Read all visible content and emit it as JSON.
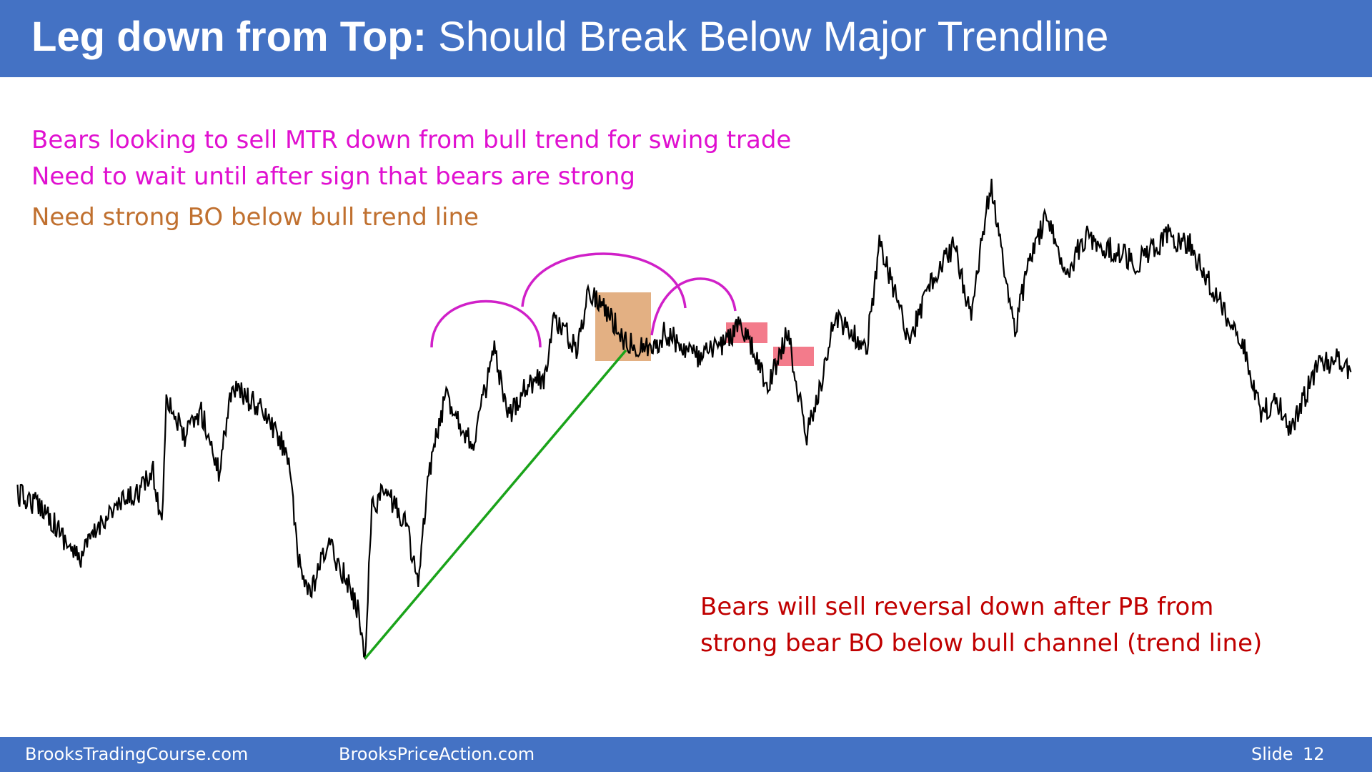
{
  "header": {
    "title_bold": "Leg down from Top:",
    "title_rest": "Should Break Below Major Trendline"
  },
  "notes": [
    "Bears looking to sell MTR down from bull trend for swing trade",
    "Need to wait until after sign that bears are strong",
    "Need strong BO below bull trend line"
  ],
  "bottom_note": [
    "Bears will sell reversal down after PB from",
    "strong bear BO below bull channel (trend line)"
  ],
  "footer": {
    "site1": "BrooksTradingCourse.com",
    "site2": "BrooksPriceAction.com",
    "slide_label": "Slide",
    "slide_number": "12"
  }
}
